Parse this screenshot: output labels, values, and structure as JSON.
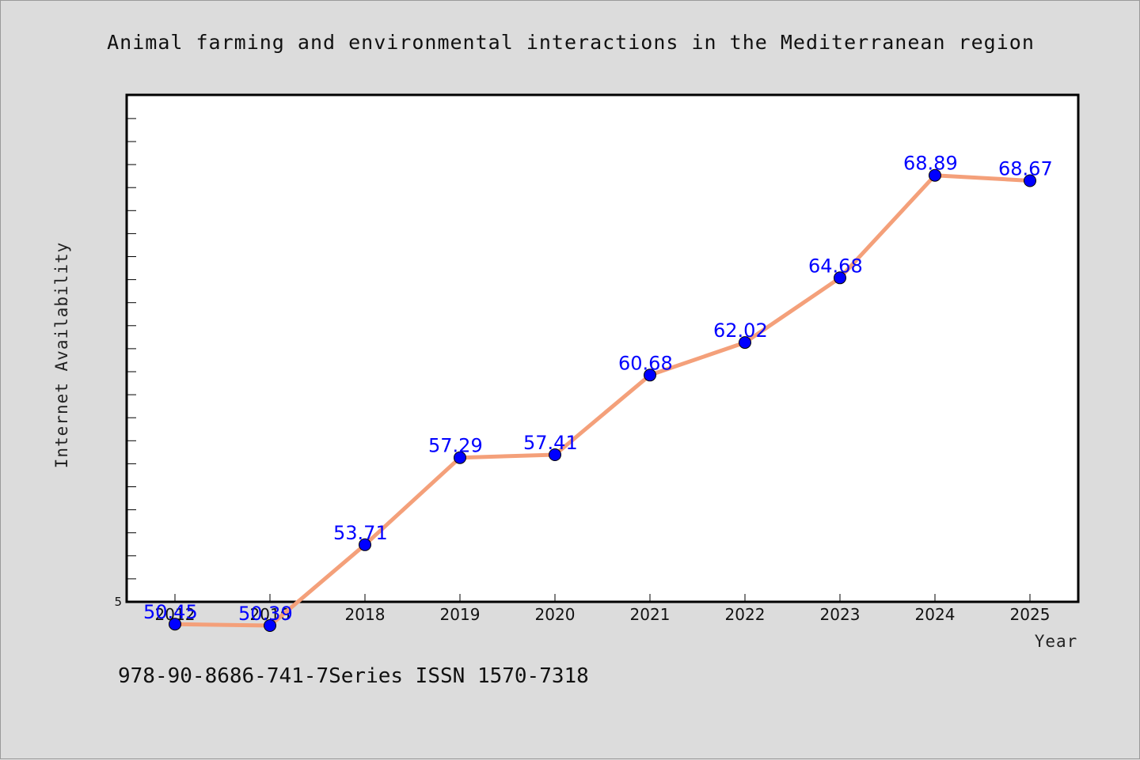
{
  "chart_data": {
    "type": "line",
    "title": "Animal farming and environmental interactions in the Mediterranean region",
    "xlabel": "Year",
    "ylabel": "Internet Availability",
    "categories": [
      "2012",
      "2016",
      "2018",
      "2019",
      "2020",
      "2021",
      "2022",
      "2023",
      "2024",
      "2025"
    ],
    "values": [
      50.45,
      50.39,
      53.71,
      57.29,
      57.41,
      60.68,
      62.02,
      64.68,
      68.89,
      68.67
    ],
    "data_labels": [
      "50.45",
      "50.39",
      "53.71",
      "57.29",
      "57.41",
      "60.68",
      "62.02",
      "64.68",
      "68.89",
      "68.67"
    ],
    "y_tick_labels": [
      "5"
    ],
    "ylim": [
      50,
      72
    ],
    "line_color": "#f4a07a",
    "marker_color": "#0000ff",
    "label_color": "#0000ff",
    "background": "#dcdcdc",
    "plot_background": "#ffffff",
    "grid": false,
    "legend": "none"
  },
  "footer_text": "978-90-8686-741-7Series ISSN 1570-7318"
}
